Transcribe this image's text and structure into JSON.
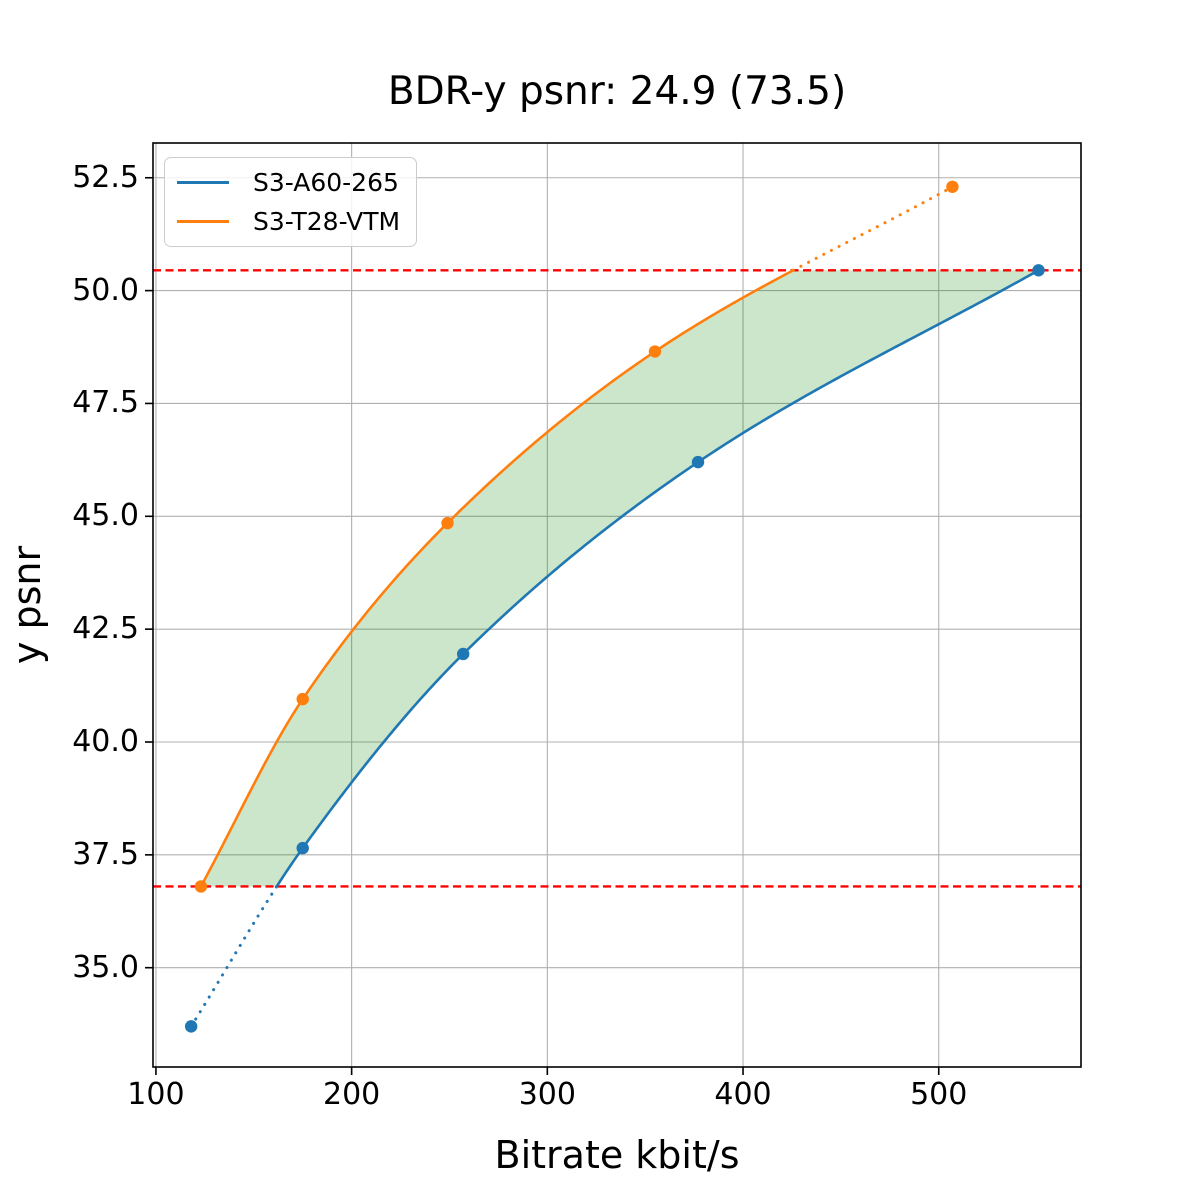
{
  "title": "BDR-y psnr: 24.9 (73.5)",
  "chart_data": {
    "type": "line",
    "title": "BDR-y psnr: 24.9 (73.5)",
    "xlabel": "Bitrate kbit/s",
    "ylabel": "y psnr",
    "xlim": [
      98.5,
      572.7
    ],
    "ylim": [
      32.8,
      53.27
    ],
    "xticks": [
      100,
      200,
      300,
      400,
      500
    ],
    "xtick_labels": [
      "100",
      "200",
      "300",
      "400",
      "500"
    ],
    "yticks": [
      35.0,
      37.5,
      40.0,
      42.5,
      45.0,
      47.5,
      50.0,
      52.5
    ],
    "ytick_labels": [
      "35.0",
      "37.5",
      "40.0",
      "42.5",
      "45.0",
      "47.5",
      "50.0",
      "52.5"
    ],
    "grid": true,
    "grid_color": "#b0b0b0",
    "legend_position": "upper left",
    "series": [
      {
        "name": "S3-A60-265",
        "color": "#1f77b4",
        "points": [
          [
            118,
            33.7
          ],
          [
            175,
            37.65
          ],
          [
            257,
            41.95
          ],
          [
            377,
            46.2
          ],
          [
            551,
            50.45
          ]
        ],
        "dotted_segment": "below lower reference line"
      },
      {
        "name": "S3-T28-VTM",
        "color": "#ff7f0e",
        "points": [
          [
            123,
            36.8
          ],
          [
            175,
            40.95
          ],
          [
            249,
            44.85
          ],
          [
            355,
            48.65
          ],
          [
            507,
            52.3
          ]
        ],
        "dotted_segment": "above upper reference line"
      }
    ],
    "reference_lines": {
      "color": "#ff0000",
      "style": "dashed",
      "lower": 36.8,
      "upper": 50.45
    },
    "shaded_region": {
      "color": "green",
      "alpha": 0.2,
      "description": "area between the two curves clipped between lower and upper reference lines"
    }
  }
}
